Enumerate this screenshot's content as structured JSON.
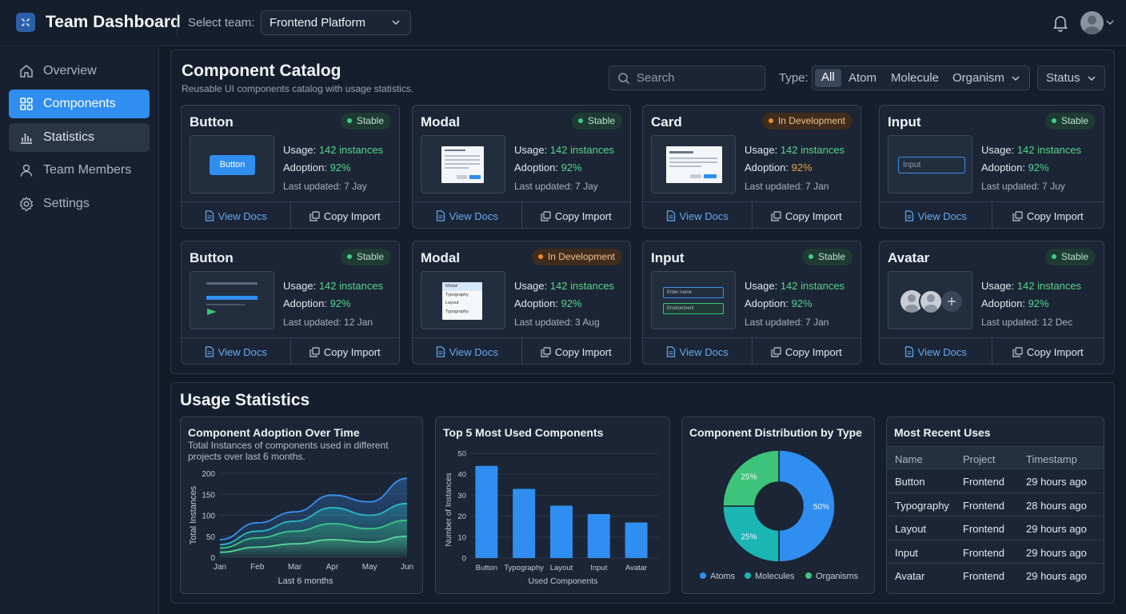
{
  "header": {
    "app_title": "Team Dashboard",
    "team_label": "Select team:",
    "team_value": "Frontend Platform"
  },
  "sidebar": {
    "items": [
      {
        "label": "Overview",
        "icon": "home-icon"
      },
      {
        "label": "Components",
        "icon": "grid-icon"
      },
      {
        "label": "Statistics",
        "icon": "bar-chart-icon"
      },
      {
        "label": "Team Members",
        "icon": "user-icon"
      },
      {
        "label": "Settings",
        "icon": "gear-icon"
      }
    ]
  },
  "catalog": {
    "title": "Component Catalog",
    "subtitle": "Reusable UI components catalog with usage statistics.",
    "search_placeholder": "Search",
    "type_label": "Type:",
    "type_options": [
      "All",
      "Atom",
      "Molecule",
      "Organism"
    ],
    "status_label": "Status",
    "usage_label": "Usage:",
    "adoption_label": "Adoption:",
    "view_docs": "View Docs",
    "copy_import": "Copy Import",
    "cards": [
      {
        "name": "Button",
        "status": "Stable",
        "usage": "142 instances",
        "adoption": "92%",
        "updated": "Last updated: 7 Jay",
        "preview_text": "Button"
      },
      {
        "name": "Modal",
        "status": "Stable",
        "usage": "142 instances",
        "adoption": "92%",
        "updated": "Last updated: 7 Jay"
      },
      {
        "name": "Card",
        "status": "In Development",
        "usage": "142 instances",
        "adoption": "92%",
        "updated": "Last updated: 7 Jan"
      },
      {
        "name": "Input",
        "status": "Stable",
        "usage": "142 instances",
        "adoption": "92%",
        "updated": "Last updated: 7 Juy",
        "preview_text": "Input"
      },
      {
        "name": "Button",
        "status": "Stable",
        "usage": "142 instances",
        "adoption": "92%",
        "updated": "Last updated: 12 Jan"
      },
      {
        "name": "Modal",
        "status": "In Development",
        "usage": "142 instances",
        "adoption": "92%",
        "updated": "Last updated: 3 Aug",
        "preview_items": [
          "Modal",
          "Typography",
          "Layout",
          "Typography"
        ]
      },
      {
        "name": "Input",
        "status": "Stable",
        "usage": "142 instances",
        "adoption": "92%",
        "updated": "Last updated: 7 Jan",
        "preview_items": [
          "Enter name",
          "Environment"
        ]
      },
      {
        "name": "Avatar",
        "status": "Stable",
        "usage": "142 instances",
        "adoption": "92%",
        "updated": "Last updated: 12 Dec"
      }
    ]
  },
  "stats": {
    "title": "Usage Statistics",
    "adoption_card": {
      "title": "Component Adoption Over Time",
      "subtitle": "Total Instances of components used in different projects over last 6 months."
    },
    "top5_card": {
      "title": "Top 5 Most Used Components"
    },
    "dist_card": {
      "title": "Component Distribution by Type"
    },
    "recent": {
      "title": "Most Recent Uses",
      "columns": [
        "Name",
        "Project",
        "Timestamp"
      ],
      "rows": [
        [
          "Button",
          "Frontend",
          "29 hours ago"
        ],
        [
          "Typography",
          "Frontend",
          "28 hours ago"
        ],
        [
          "Layout",
          "Frontend",
          "29 hours ago"
        ],
        [
          "Input",
          "Frontend",
          "29 hours ago"
        ],
        [
          "Avatar",
          "Frontend",
          "29 hours ago"
        ]
      ]
    }
  },
  "chart_data": [
    {
      "type": "area",
      "title": "Component Adoption Over Time",
      "xlabel": "Last 6 months",
      "ylabel": "Total Instances",
      "categories": [
        "Jan",
        "Feb",
        "Mar",
        "Apr",
        "May",
        "Jun"
      ],
      "yticks": [
        0,
        50,
        100,
        150,
        200
      ],
      "ylim": [
        0,
        200
      ],
      "series": [
        {
          "values": [
            42,
            82,
            108,
            148,
            132,
            188
          ],
          "color": "#3b8ff0"
        },
        {
          "values": [
            30,
            62,
            86,
            118,
            100,
            128
          ],
          "color": "#2ab9c7"
        },
        {
          "values": [
            22,
            46,
            62,
            80,
            68,
            88
          ],
          "color": "#3ac785"
        },
        {
          "values": [
            12,
            24,
            32,
            42,
            36,
            50
          ],
          "color": "#58d69a"
        }
      ],
      "grid": true
    },
    {
      "type": "bar",
      "title": "Top 5 Most Used Components",
      "xlabel": "Used Components",
      "ylabel": "Number of Instances",
      "categories": [
        "Button",
        "Typography",
        "Layout",
        "Input",
        "Avatar"
      ],
      "values": [
        44,
        33,
        25,
        21,
        17
      ],
      "yticks": [
        0,
        10,
        20,
        30,
        40,
        50
      ],
      "ylim": [
        0,
        50
      ],
      "color": "#2f8ef0",
      "grid": true
    },
    {
      "type": "pie",
      "title": "Component Distribution by Type",
      "labels": [
        "Atoms",
        "Molecules",
        "Organisms"
      ],
      "values": [
        50,
        25,
        25
      ],
      "value_labels": [
        "50%",
        "25%",
        "25%"
      ],
      "colors": [
        "#2f8ef0",
        "#1bb5b4",
        "#3ec47a"
      ],
      "legend": "bottom"
    }
  ]
}
